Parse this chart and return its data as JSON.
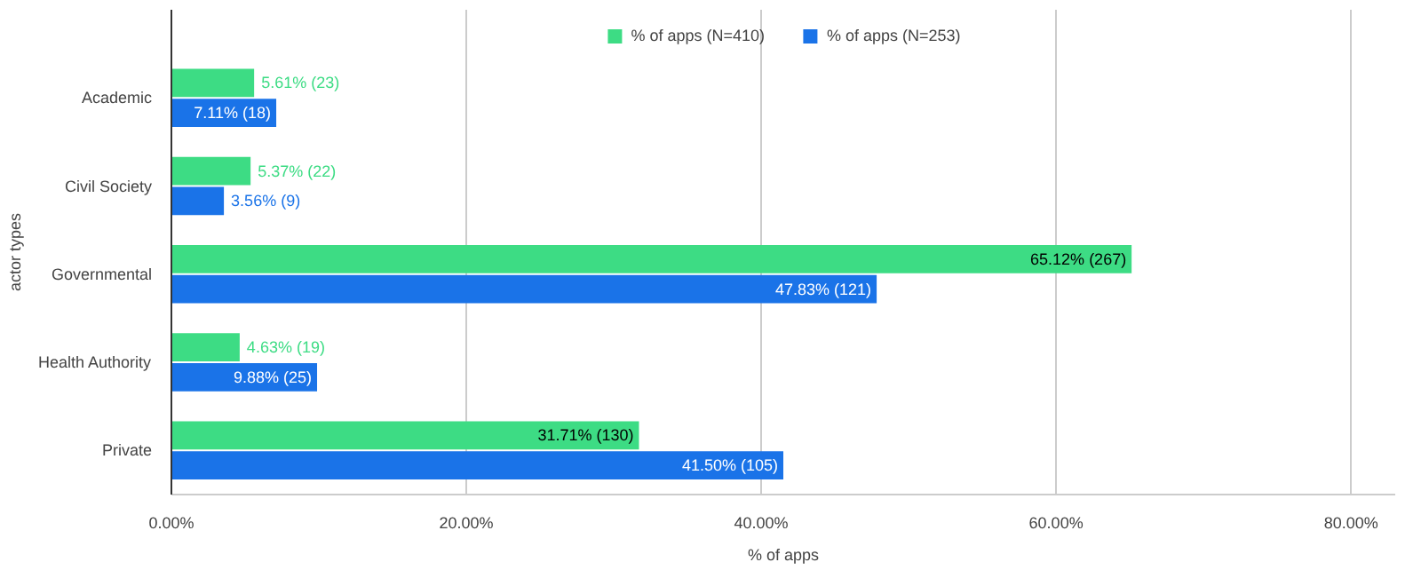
{
  "chart_data": {
    "type": "bar",
    "orientation": "horizontal",
    "xlabel": "% of apps",
    "ylabel": "actor types",
    "categories": [
      "Academic",
      "Civil Society",
      "Governmental",
      "Health Authority",
      "Private"
    ],
    "series": [
      {
        "name": "% of apps (N=410)",
        "color": "#3ddc84",
        "values": [
          5.61,
          5.37,
          65.12,
          4.63,
          31.71
        ],
        "value_labels": [
          "5.61% (23)",
          "5.37% (22)",
          "65.12% (267)",
          "4.63% (19)",
          "31.71% (130)"
        ]
      },
      {
        "name": "% of apps (N=253)",
        "color": "#1a73e8",
        "values": [
          7.11,
          3.56,
          47.83,
          9.88,
          41.5
        ],
        "value_labels": [
          "7.11% (18)",
          "3.56% (9)",
          "47.83% (121)",
          "9.88% (25)",
          "41.50% (105)"
        ]
      }
    ],
    "xlim": [
      0,
      83
    ],
    "xticks": [
      {
        "value": 0,
        "label": "0.00%"
      },
      {
        "value": 20,
        "label": "20.00%"
      },
      {
        "value": 40,
        "label": "40.00%"
      },
      {
        "value": 60,
        "label": "60.00%"
      },
      {
        "value": 80,
        "label": "80.00%"
      }
    ],
    "grid": "x",
    "legend": "top"
  }
}
